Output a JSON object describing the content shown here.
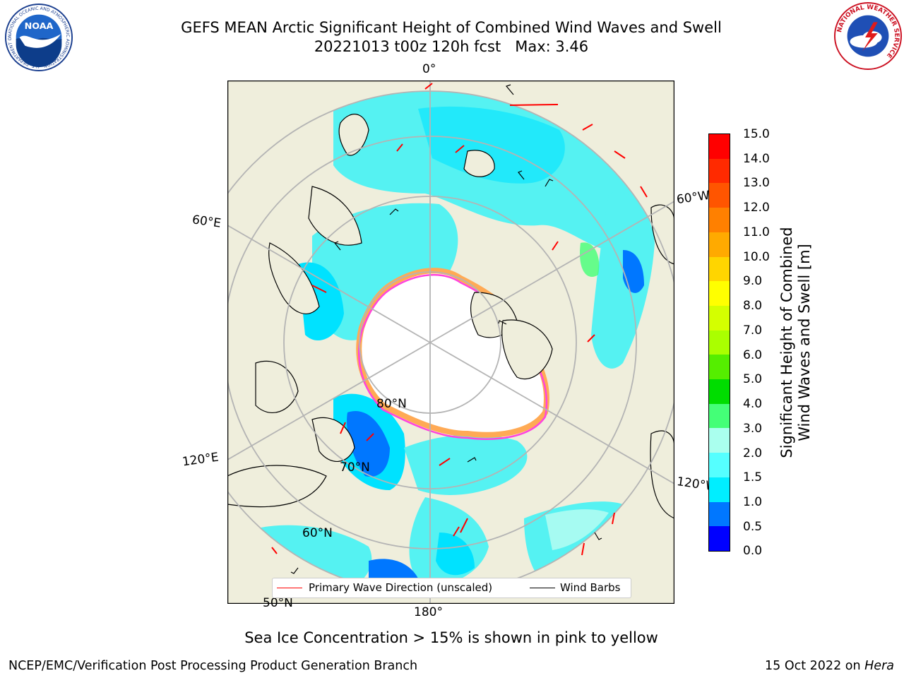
{
  "title": {
    "line1": "GEFS MEAN Arctic Significant Height of Combined Wind Waves and Swell",
    "line2": "20221013 t00z 120h fcst   Max: 3.46"
  },
  "logos": {
    "noaa_text": "NOAA",
    "noaa_ring": "NATIONAL OCEANIC AND ATMOSPHERIC ADMINISTRATION · U.S. DEPARTMENT OF COMMERCE",
    "nws_ring": "NATIONAL WEATHER SERVICE"
  },
  "map_labels": {
    "lon_0": "0°",
    "lon_60e": "60°E",
    "lon_60w": "60°W",
    "lon_120e": "120°E",
    "lon_120w": "120°W",
    "lon_180": "180°",
    "lat_80": "80°N",
    "lat_70": "70°N",
    "lat_60": "60°N",
    "lat_50": "50°N"
  },
  "legend": {
    "wave_direction": "Primary Wave Direction (unscaled)",
    "wind_barbs": "Wind Barbs"
  },
  "colorbar": {
    "label_line1": "Significant Height of Combined",
    "label_line2": "Wind Waves and Swell [m]",
    "ticks": [
      "15.0",
      "14.0",
      "13.0",
      "12.0",
      "11.0",
      "10.0",
      "9.0",
      "8.0",
      "7.0",
      "6.0",
      "5.0",
      "4.0",
      "3.0",
      "2.0",
      "1.5",
      "1.0",
      "0.5",
      "0.0"
    ],
    "colors_top_to_bottom": [
      "#ff0000",
      "#ff2a00",
      "#ff5500",
      "#ff8000",
      "#ffaa00",
      "#ffd500",
      "#ffff00",
      "#d4ff00",
      "#aaff00",
      "#55ee00",
      "#00dd00",
      "#44ff77",
      "#aaffee",
      "#55ffff",
      "#00eeff",
      "#0077ff",
      "#0000ff"
    ]
  },
  "colors": {
    "land": "#efeedc",
    "ocean_main": "#55f2f2",
    "ocean_light": "#a6fbf2",
    "ocean_mid": "#00e2ff",
    "ocean_blue": "#0077ff",
    "ice_edge_pink": "#ff44dd",
    "ice_edge_orange": "#ffaa55",
    "arrow": "#ff0000"
  },
  "subtitle": "Sea Ice Concentration > 15% is shown in pink to yellow",
  "footer": {
    "left": "NCEP/EMC/Verification Post Processing Product Generation Branch",
    "date": "15 Oct 2022 on ",
    "machine": "Hera"
  }
}
